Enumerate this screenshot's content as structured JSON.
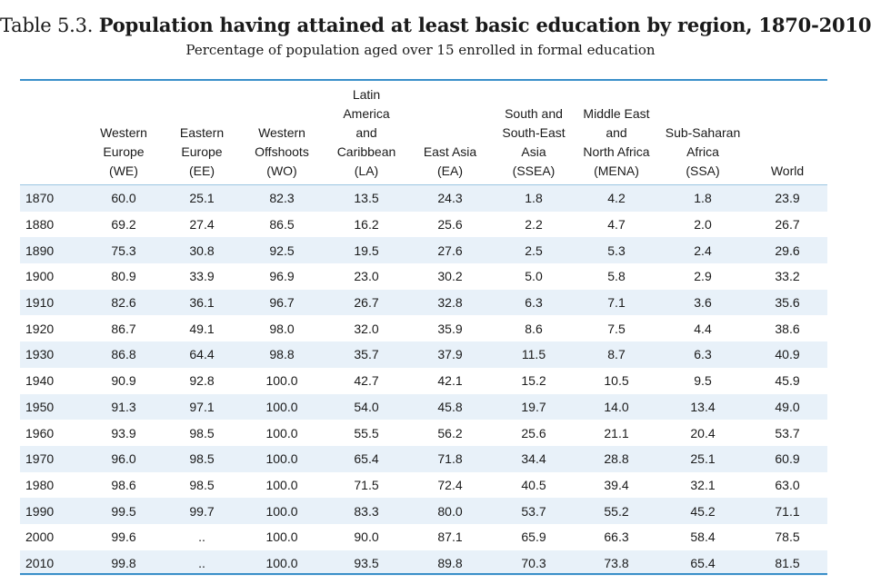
{
  "title": {
    "prefix": "Table 5.3.",
    "main": "Population having attained at least basic education by region, 1870-2010"
  },
  "subtitle": "Percentage of population aged over 15 enrolled in formal education",
  "columns": [
    {
      "lines": [
        "Western",
        "Europe",
        "(WE)"
      ]
    },
    {
      "lines": [
        "Eastern",
        "Europe",
        "(EE)"
      ]
    },
    {
      "lines": [
        "Western",
        "Offshoots",
        "(WO)"
      ]
    },
    {
      "lines": [
        "Latin",
        "America",
        "and",
        "Caribbean",
        "(LA)"
      ]
    },
    {
      "lines": [
        "East Asia",
        "(EA)"
      ]
    },
    {
      "lines": [
        "South and",
        "South-East",
        "Asia",
        "(SSEA)"
      ]
    },
    {
      "lines": [
        "Middle East",
        "and",
        "North Africa",
        "(MENA)"
      ]
    },
    {
      "lines": [
        "Sub-Saharan",
        "Africa",
        "(SSA)"
      ]
    },
    {
      "lines": [
        "World"
      ]
    }
  ],
  "rows": [
    {
      "year": "1870",
      "values": [
        "60.0",
        "25.1",
        "82.3",
        "13.5",
        "24.3",
        "1.8",
        "4.2",
        "1.8",
        "23.9"
      ]
    },
    {
      "year": "1880",
      "values": [
        "69.2",
        "27.4",
        "86.5",
        "16.2",
        "25.6",
        "2.2",
        "4.7",
        "2.0",
        "26.7"
      ]
    },
    {
      "year": "1890",
      "values": [
        "75.3",
        "30.8",
        "92.5",
        "19.5",
        "27.6",
        "2.5",
        "5.3",
        "2.4",
        "29.6"
      ]
    },
    {
      "year": "1900",
      "values": [
        "80.9",
        "33.9",
        "96.9",
        "23.0",
        "30.2",
        "5.0",
        "5.8",
        "2.9",
        "33.2"
      ]
    },
    {
      "year": "1910",
      "values": [
        "82.6",
        "36.1",
        "96.7",
        "26.7",
        "32.8",
        "6.3",
        "7.1",
        "3.6",
        "35.6"
      ]
    },
    {
      "year": "1920",
      "values": [
        "86.7",
        "49.1",
        "98.0",
        "32.0",
        "35.9",
        "8.6",
        "7.5",
        "4.4",
        "38.6"
      ]
    },
    {
      "year": "1930",
      "values": [
        "86.8",
        "64.4",
        "98.8",
        "35.7",
        "37.9",
        "11.5",
        "8.7",
        "6.3",
        "40.9"
      ]
    },
    {
      "year": "1940",
      "values": [
        "90.9",
        "92.8",
        "100.0",
        "42.7",
        "42.1",
        "15.2",
        "10.5",
        "9.5",
        "45.9"
      ]
    },
    {
      "year": "1950",
      "values": [
        "91.3",
        "97.1",
        "100.0",
        "54.0",
        "45.8",
        "19.7",
        "14.0",
        "13.4",
        "49.0"
      ]
    },
    {
      "year": "1960",
      "values": [
        "93.9",
        "98.5",
        "100.0",
        "55.5",
        "56.2",
        "25.6",
        "21.1",
        "20.4",
        "53.7"
      ]
    },
    {
      "year": "1970",
      "values": [
        "96.0",
        "98.5",
        "100.0",
        "65.4",
        "71.8",
        "34.4",
        "28.8",
        "25.1",
        "60.9"
      ]
    },
    {
      "year": "1980",
      "values": [
        "98.6",
        "98.5",
        "100.0",
        "71.5",
        "72.4",
        "40.5",
        "39.4",
        "32.1",
        "63.0"
      ]
    },
    {
      "year": "1990",
      "values": [
        "99.5",
        "99.7",
        "100.0",
        "83.3",
        "80.0",
        "53.7",
        "55.2",
        "45.2",
        "71.1"
      ]
    },
    {
      "year": "2000",
      "values": [
        "99.6",
        "..",
        "100.0",
        "90.0",
        "87.1",
        "65.9",
        "66.3",
        "58.4",
        "78.5"
      ]
    },
    {
      "year": "2010",
      "values": [
        "99.8",
        "..",
        "100.0",
        "93.5",
        "89.8",
        "70.3",
        "73.8",
        "65.4",
        "81.5"
      ]
    }
  ],
  "colors": {
    "rule": "#3a8fc9",
    "shade": "#e8f1f9"
  }
}
